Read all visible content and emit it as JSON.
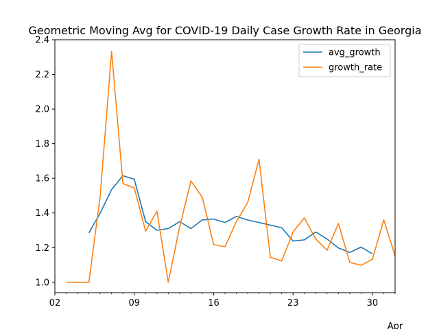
{
  "chart_data": {
    "type": "line",
    "title": "Geometric Moving Avg for COVID-19 Daily Case Growth Rate in Georgia",
    "xlabel": "",
    "ylabel": "",
    "x_start_day": 2,
    "x_end_day": 32,
    "x_ticks": [
      {
        "day": 2,
        "label": "02",
        "sublabel": "Apr"
      },
      {
        "day": 9,
        "label": "09",
        "sublabel": ""
      },
      {
        "day": 16,
        "label": "16",
        "sublabel": ""
      },
      {
        "day": 23,
        "label": "23",
        "sublabel": ""
      },
      {
        "day": 30,
        "label": "30",
        "sublabel": ""
      }
    ],
    "ylim": [
      0.94,
      2.4
    ],
    "y_ticks": [
      "1.0",
      "1.2",
      "1.4",
      "1.6",
      "1.8",
      "2.0",
      "2.2",
      "2.4"
    ],
    "grid": false,
    "legend_position": "top-right",
    "series": [
      {
        "name": "avg_growth",
        "color": "#1f77b4",
        "points": [
          [
            5,
            1.285
          ],
          [
            6,
            1.4
          ],
          [
            7,
            1.535
          ],
          [
            8,
            1.615
          ],
          [
            9,
            1.595
          ],
          [
            10,
            1.35
          ],
          [
            11,
            1.3
          ],
          [
            12,
            1.31
          ],
          [
            13,
            1.35
          ],
          [
            14,
            1.31
          ],
          [
            15,
            1.36
          ],
          [
            16,
            1.365
          ],
          [
            17,
            1.345
          ],
          [
            18,
            1.38
          ],
          [
            19,
            1.36
          ],
          [
            20,
            1.345
          ],
          [
            21,
            1.33
          ],
          [
            22,
            1.315
          ],
          [
            23,
            1.238
          ],
          [
            24,
            1.245
          ],
          [
            25,
            1.29
          ],
          [
            26,
            1.25
          ],
          [
            27,
            1.198
          ],
          [
            28,
            1.172
          ],
          [
            29,
            1.203
          ],
          [
            30,
            1.165
          ]
        ]
      },
      {
        "name": "growth_rate",
        "color": "#ff7f0e",
        "points": [
          [
            3,
            1.0
          ],
          [
            4,
            1.0
          ],
          [
            5,
            1.0
          ],
          [
            6,
            1.5
          ],
          [
            7,
            2.333
          ],
          [
            8,
            1.57
          ],
          [
            9,
            1.545
          ],
          [
            10,
            1.295
          ],
          [
            11,
            1.41
          ],
          [
            12,
            1.0
          ],
          [
            13,
            1.32
          ],
          [
            14,
            1.585
          ],
          [
            15,
            1.49
          ],
          [
            16,
            1.218
          ],
          [
            17,
            1.205
          ],
          [
            18,
            1.35
          ],
          [
            19,
            1.46
          ],
          [
            20,
            1.71
          ],
          [
            21,
            1.145
          ],
          [
            22,
            1.123
          ],
          [
            23,
            1.29
          ],
          [
            24,
            1.372
          ],
          [
            25,
            1.25
          ],
          [
            26,
            1.185
          ],
          [
            27,
            1.34
          ],
          [
            28,
            1.115
          ],
          [
            29,
            1.098
          ],
          [
            30,
            1.133
          ],
          [
            31,
            1.36
          ],
          [
            32,
            1.153
          ]
        ]
      }
    ]
  }
}
